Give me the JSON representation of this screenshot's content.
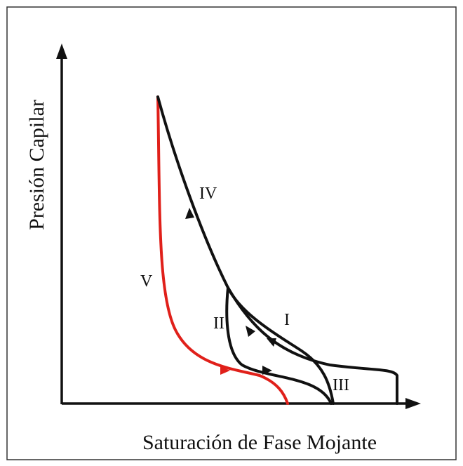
{
  "y_axis_label": "Presión Capilar",
  "x_axis_label": "Saturación de Fase Mojante",
  "curve_labels": [
    "IV",
    "V",
    "II",
    "I",
    "III"
  ]
}
